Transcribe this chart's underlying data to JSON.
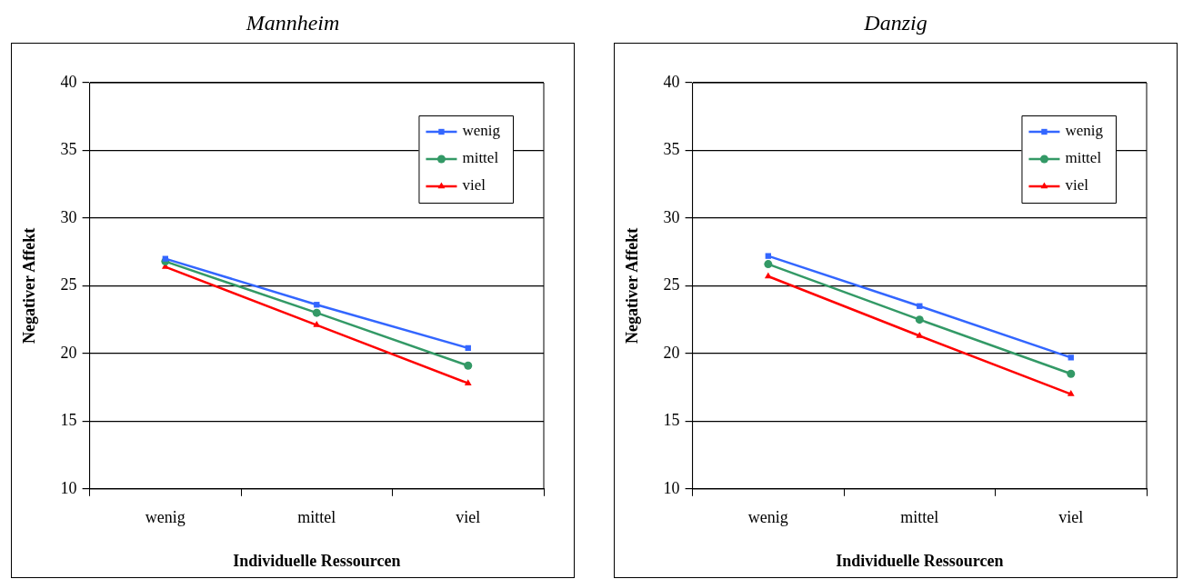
{
  "chart_data": [
    {
      "type": "line",
      "title": "Mannheim",
      "xlabel": "Individuelle Ressourcen",
      "ylabel": "Negativer Affekt",
      "categories": [
        "wenig",
        "mittel",
        "viel"
      ],
      "series": [
        {
          "name": "wenig",
          "color": "#3366ff",
          "marker": "square",
          "values": [
            27.0,
            23.6,
            20.4
          ]
        },
        {
          "name": "mittel",
          "color": "#339966",
          "marker": "circle",
          "values": [
            26.8,
            23.0,
            19.1
          ]
        },
        {
          "name": "viel",
          "color": "#ff0000",
          "marker": "triangle",
          "values": [
            26.4,
            22.1,
            17.8
          ]
        }
      ],
      "ylim": [
        10,
        40
      ],
      "yticks": [
        10,
        15,
        20,
        25,
        30,
        35,
        40
      ],
      "grid": "y",
      "legend": "top right",
      "line_style": "solid"
    },
    {
      "type": "line",
      "title": "Danzig",
      "xlabel": "Individuelle Ressourcen",
      "ylabel": "Negativer Affekt",
      "categories": [
        "wenig",
        "mittel",
        "viel"
      ],
      "series": [
        {
          "name": "wenig",
          "color": "#3366ff",
          "marker": "square",
          "values": [
            27.2,
            23.5,
            19.7
          ]
        },
        {
          "name": "mittel",
          "color": "#339966",
          "marker": "circle",
          "values": [
            26.6,
            22.5,
            18.5
          ]
        },
        {
          "name": "viel",
          "color": "#ff0000",
          "marker": "triangle",
          "values": [
            25.7,
            21.3,
            17.0
          ]
        }
      ],
      "ylim": [
        10,
        40
      ],
      "yticks": [
        10,
        15,
        20,
        25,
        30,
        35,
        40
      ],
      "grid": "y",
      "legend": "top right",
      "line_style": "solid"
    }
  ]
}
